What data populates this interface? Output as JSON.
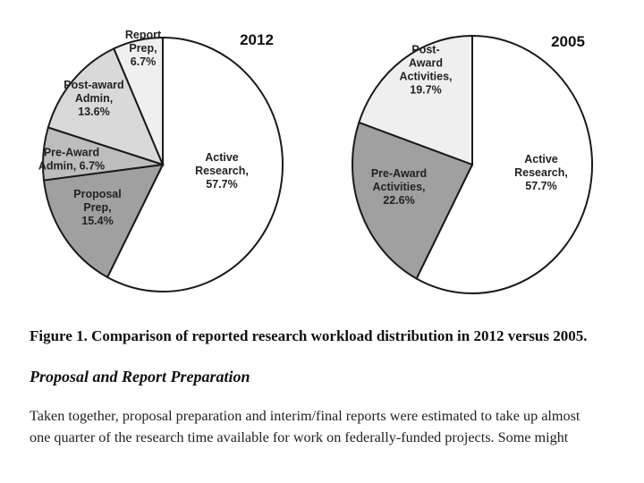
{
  "chart_data": [
    {
      "type": "pie",
      "title": "2012",
      "slices": [
        {
          "label_lines": [
            "Active",
            "Research,",
            "57.7%"
          ],
          "value": 57.7,
          "color": "#ffffff"
        },
        {
          "label_lines": [
            "Proposal",
            "Prep,",
            "15.4%"
          ],
          "value": 15.4,
          "color": "#a0a0a0"
        },
        {
          "label_lines": [
            "Pre-Award",
            "Admin, 6.7%"
          ],
          "value": 6.7,
          "color": "#bdbdbd"
        },
        {
          "label_lines": [
            "Post-award",
            "Admin,",
            "13.6%"
          ],
          "value": 13.6,
          "color": "#d9d9d9"
        },
        {
          "label_lines": [
            "Report",
            "Prep,",
            "6.7%"
          ],
          "value": 6.7,
          "color": "#efefef"
        }
      ]
    },
    {
      "type": "pie",
      "title": "2005",
      "slices": [
        {
          "label_lines": [
            "Active",
            "Research,",
            "57.7%"
          ],
          "value": 57.7,
          "color": "#ffffff"
        },
        {
          "label_lines": [
            "Pre-Award",
            "Activities,",
            "22.6%"
          ],
          "value": 22.6,
          "color": "#a0a0a0"
        },
        {
          "label_lines": [
            "Post-",
            "Award",
            "Activities,",
            "19.7%"
          ],
          "value": 19.7,
          "color": "#efefef"
        }
      ]
    }
  ],
  "figure": {
    "caption": "Figure 1.  Comparison of reported research workload distribution in 2012 versus 2005."
  },
  "section": {
    "heading": "Proposal and Report Preparation",
    "paragraph_line_1": "Taken together, proposal preparation and interim/final reports were estimated to take up almost",
    "paragraph_line_2": "one quarter of the research time available for work on federally-funded projects. Some might"
  }
}
